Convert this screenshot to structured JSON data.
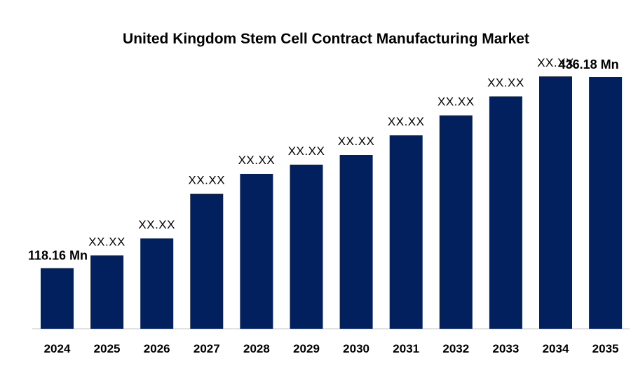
{
  "chart_data": {
    "type": "bar",
    "title": "United Kingdom Stem Cell Contract Manufacturing Market",
    "xlabel": "",
    "ylabel": "",
    "categories": [
      "2024",
      "2025",
      "2026",
      "2027",
      "2028",
      "2029",
      "2030",
      "2031",
      "2032",
      "2033",
      "2034",
      "2035"
    ],
    "values": [
      118.16,
      143,
      176,
      263,
      302,
      320,
      339,
      377,
      416,
      453,
      492,
      436.18
    ],
    "data_labels": [
      "118.16 Mn",
      "XX.XX",
      "XX.XX",
      "XX.XX",
      "XX.XX",
      "XX.XX",
      "XX.XX",
      "XX.XX",
      "XX.XX",
      "XX.XX",
      "XX.XX",
      "436.18  Mn"
    ],
    "ylim": [
      0,
      520
    ],
    "grid": false,
    "legend": "none",
    "bar_color": "#03205e"
  }
}
